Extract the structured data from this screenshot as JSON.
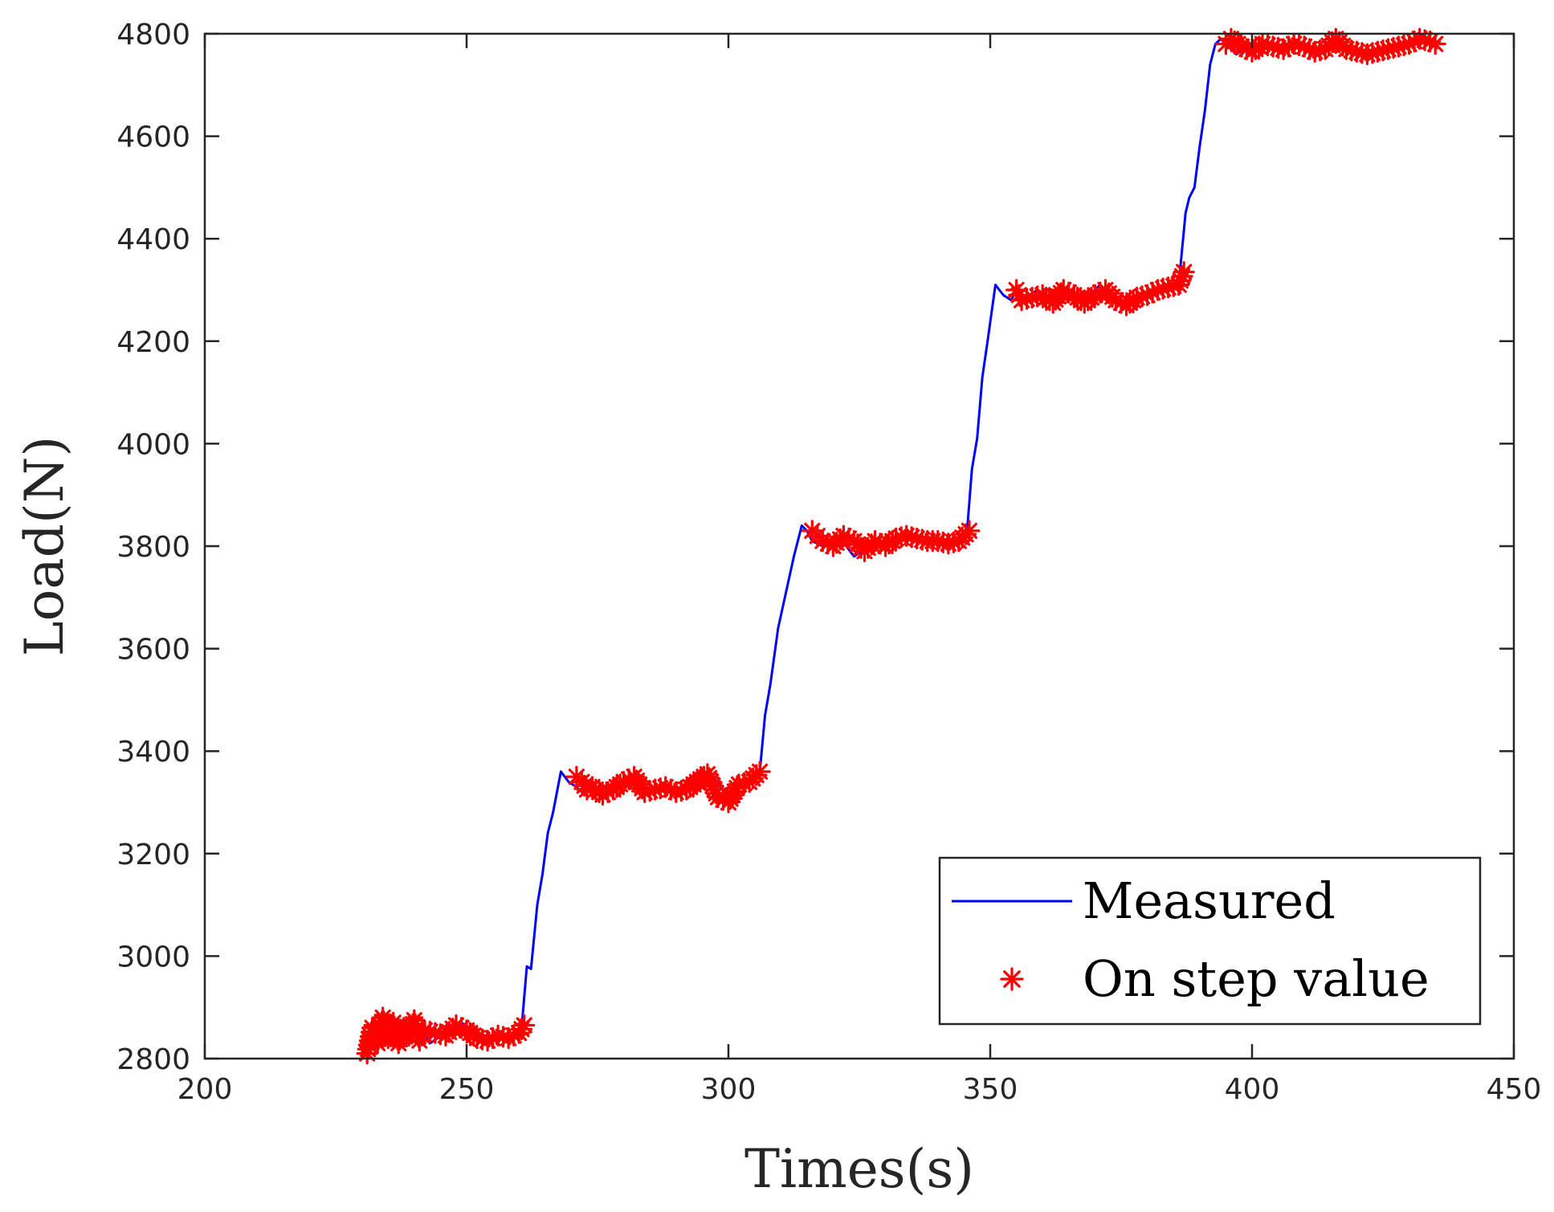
{
  "chart_data": {
    "type": "line",
    "title": "",
    "xlabel": "Times(s)",
    "ylabel": "Load(N)",
    "xlim": [
      200,
      450
    ],
    "ylim": [
      2800,
      4800
    ],
    "xticks": [
      200,
      250,
      300,
      350,
      400,
      450
    ],
    "yticks": [
      2800,
      3000,
      3200,
      3400,
      3600,
      3800,
      4000,
      4200,
      4400,
      4600,
      4800
    ],
    "xtick_labels": [
      "200",
      "250",
      "300",
      "350",
      "400",
      "450"
    ],
    "ytick_labels": [
      "2800",
      "3000",
      "3200",
      "3400",
      "3600",
      "3800",
      "4000",
      "4200",
      "4400",
      "4600",
      "4800"
    ],
    "grid": false,
    "legend_position": "bottom-right",
    "series": [
      {
        "name": "Measured",
        "style": "line",
        "color": "#0000ff",
        "x": [
          231,
          233,
          235,
          237,
          239,
          241,
          243,
          246,
          249,
          252,
          255,
          258,
          260.5,
          261.5,
          262.3,
          263.5,
          264.5,
          265.5,
          266.5,
          268,
          269.5,
          271,
          272,
          275,
          278,
          282,
          286,
          290,
          294,
          297,
          300,
          303,
          306,
          307,
          308,
          309.5,
          311,
          312.5,
          314,
          315,
          316,
          318,
          321,
          324,
          327,
          330,
          334,
          338,
          342,
          345.5,
          346.5,
          347.5,
          348.5,
          349.5,
          351,
          352.5,
          354,
          355,
          356,
          359,
          362,
          365,
          368,
          371,
          374,
          377,
          380,
          383,
          386,
          387.3,
          388,
          389,
          390,
          391,
          392,
          393,
          394,
          395,
          397,
          400,
          404,
          408,
          412,
          416,
          420,
          424,
          428,
          432,
          435
        ],
        "y": [
          2810,
          2860,
          2830,
          2870,
          2840,
          2860,
          2830,
          2850,
          2870,
          2850,
          2840,
          2840,
          2860,
          2980,
          2975,
          3100,
          3160,
          3240,
          3280,
          3360,
          3340,
          3330,
          3320,
          3340,
          3320,
          3345,
          3320,
          3325,
          3330,
          3350,
          3310,
          3340,
          3360,
          3470,
          3530,
          3640,
          3710,
          3780,
          3840,
          3830,
          3810,
          3800,
          3820,
          3780,
          3800,
          3810,
          3815,
          3810,
          3805,
          3820,
          3950,
          4010,
          4130,
          4200,
          4310,
          4290,
          4280,
          4300,
          4280,
          4300,
          4270,
          4300,
          4280,
          4310,
          4280,
          4270,
          4290,
          4300,
          4310,
          4450,
          4480,
          4500,
          4580,
          4650,
          4740,
          4780,
          4790,
          4780,
          4760,
          4780,
          4770,
          4780,
          4760,
          4790,
          4760,
          4760,
          4770,
          4790,
          4780
        ]
      },
      {
        "name": "On step value",
        "style": "marker",
        "marker": "asterisk",
        "color": "#ff0000",
        "x": [
          231,
          232,
          233,
          234,
          235,
          236,
          237,
          238,
          239,
          240,
          241,
          242,
          244,
          246,
          248,
          250,
          252,
          254,
          256,
          258,
          260,
          261,
          271,
          272,
          273,
          274,
          276,
          278,
          280,
          282,
          284,
          286,
          288,
          290,
          292,
          294,
          296,
          298,
          300,
          302,
          304,
          306,
          316,
          317,
          318,
          320,
          322,
          324,
          326,
          328,
          330,
          332,
          334,
          336,
          338,
          340,
          342,
          344,
          346,
          355,
          356,
          358,
          360,
          362,
          364,
          366,
          368,
          370,
          372,
          374,
          376,
          378,
          380,
          382,
          384,
          386,
          387,
          395,
          396,
          398,
          400,
          402,
          404,
          406,
          408,
          410,
          412,
          414,
          416,
          418,
          420,
          422,
          424,
          426,
          428,
          430,
          432,
          434,
          435
        ],
        "y": [
          2810,
          2860,
          2830,
          2880,
          2840,
          2870,
          2830,
          2860,
          2845,
          2875,
          2835,
          2855,
          2850,
          2845,
          2865,
          2855,
          2840,
          2835,
          2845,
          2840,
          2850,
          2865,
          3350,
          3340,
          3325,
          3330,
          3315,
          3325,
          3340,
          3350,
          3320,
          3325,
          3330,
          3320,
          3325,
          3340,
          3355,
          3310,
          3300,
          3335,
          3340,
          3360,
          3830,
          3820,
          3810,
          3800,
          3820,
          3810,
          3790,
          3810,
          3800,
          3815,
          3820,
          3815,
          3810,
          3810,
          3805,
          3810,
          3830,
          4300,
          4280,
          4285,
          4290,
          4275,
          4300,
          4290,
          4275,
          4290,
          4300,
          4280,
          4270,
          4285,
          4290,
          4300,
          4305,
          4310,
          4335,
          4780,
          4790,
          4775,
          4765,
          4780,
          4775,
          4770,
          4780,
          4775,
          4765,
          4770,
          4790,
          4770,
          4765,
          4760,
          4765,
          4770,
          4775,
          4780,
          4790,
          4785,
          4780
        ]
      }
    ]
  }
}
